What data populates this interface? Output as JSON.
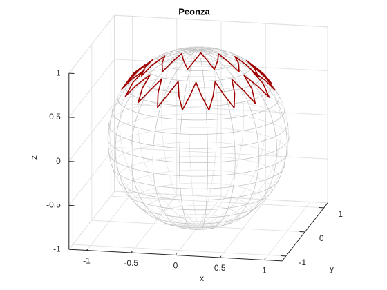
{
  "chart_data": {
    "type": "line3d",
    "title": "Peonza",
    "xlabel": "x",
    "ylabel": "y",
    "zlabel": "z",
    "xlim": [
      -1.2,
      1.2
    ],
    "ylim": [
      -1.2,
      1.2
    ],
    "zlim": [
      -1,
      1
    ],
    "xticks": [
      -1,
      -0.5,
      0,
      0.5,
      1
    ],
    "yticks": [
      -1,
      0,
      1
    ],
    "zticks": [
      -1,
      -0.5,
      0,
      0.5,
      1
    ],
    "grid": true,
    "surface": {
      "shape": "sphere",
      "radius": 1,
      "color": "#c4c4c4"
    },
    "series": [
      {
        "color": "#a00000",
        "x": [
          0.6,
          0.74,
          0.83,
          0.71,
          0.56,
          0.67,
          0.73,
          0.61,
          0.46,
          0.52,
          0.54,
          0.42,
          0.3,
          0.31,
          0.29,
          0.19,
          0.1,
          0.06,
          0,
          -0.06,
          -0.1,
          -0.19,
          -0.29,
          -0.31,
          -0.3,
          -0.42,
          -0.54,
          -0.52,
          -0.46,
          -0.61,
          -0.73,
          -0.67,
          -0.56,
          -0.71,
          -0.83,
          -0.74,
          -0.6,
          -0.74,
          -0.83,
          -0.71,
          -0.56,
          -0.67,
          -0.73,
          -0.61,
          -0.46,
          -0.52,
          -0.54,
          -0.42,
          -0.3,
          -0.31,
          -0.29,
          -0.19,
          -0.1,
          -0.06,
          0,
          0.06,
          0.1,
          0.19,
          0.29,
          0.31,
          0.3,
          0.42,
          0.54,
          0.52,
          0.46,
          0.61,
          0.73,
          0.67,
          0.56,
          0.71,
          0.83,
          0.74,
          0.6
        ],
        "y": [
          0,
          0.06,
          0.15,
          0.19,
          0.21,
          0.31,
          0.42,
          0.42,
          0.39,
          0.52,
          0.64,
          0.61,
          0.52,
          0.67,
          0.79,
          0.71,
          0.59,
          0.74,
          0.84,
          0.74,
          0.59,
          0.71,
          0.79,
          0.67,
          0.52,
          0.61,
          0.64,
          0.52,
          0.39,
          0.42,
          0.42,
          0.31,
          0.21,
          0.19,
          0.15,
          0.06,
          0,
          -0.06,
          -0.15,
          -0.19,
          -0.21,
          -0.31,
          -0.42,
          -0.42,
          -0.39,
          -0.52,
          -0.64,
          -0.61,
          -0.52,
          -0.67,
          -0.79,
          -0.71,
          -0.59,
          -0.74,
          -0.84,
          -0.74,
          -0.59,
          -0.71,
          -0.79,
          -0.67,
          -0.52,
          -0.61,
          -0.64,
          -0.52,
          -0.39,
          -0.42,
          -0.42,
          -0.31,
          -0.21,
          -0.19,
          -0.15,
          -0.06,
          0
        ],
        "z": [
          0.8,
          0.68,
          0.55,
          0.68,
          0.8,
          0.68,
          0.55,
          0.68,
          0.8,
          0.68,
          0.55,
          0.68,
          0.8,
          0.68,
          0.55,
          0.68,
          0.8,
          0.68,
          0.55,
          0.68,
          0.8,
          0.68,
          0.55,
          0.68,
          0.8,
          0.68,
          0.55,
          0.68,
          0.8,
          0.68,
          0.55,
          0.68,
          0.8,
          0.68,
          0.55,
          0.68,
          0.8,
          0.68,
          0.55,
          0.68,
          0.8,
          0.68,
          0.55,
          0.68,
          0.8,
          0.68,
          0.55,
          0.68,
          0.8,
          0.68,
          0.55,
          0.68,
          0.8,
          0.68,
          0.55,
          0.68,
          0.8,
          0.68,
          0.55,
          0.68,
          0.8,
          0.68,
          0.55,
          0.68,
          0.8,
          0.68,
          0.55,
          0.68,
          0.8,
          0.68,
          0.55,
          0.68,
          0.8
        ]
      }
    ]
  }
}
